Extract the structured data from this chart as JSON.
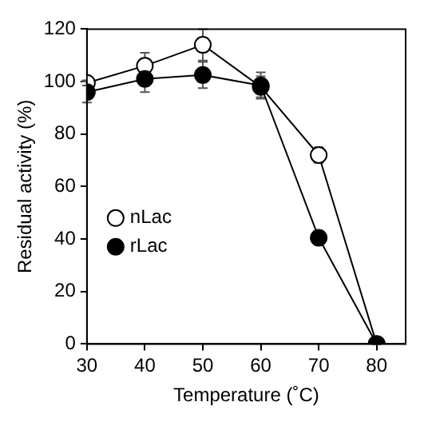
{
  "chart_data": {
    "type": "line",
    "xlabel": "Temperature (˚C)",
    "ylabel": "Residual activity (%)",
    "x": [
      30,
      40,
      50,
      60,
      70,
      80
    ],
    "series": [
      {
        "name": "nLac",
        "color": "#ffffff",
        "values": [
          99.5,
          106,
          114,
          98,
          72,
          0
        ],
        "errors": [
          1,
          5,
          6,
          4,
          3,
          0
        ]
      },
      {
        "name": "rLac",
        "color": "#000000",
        "values": [
          96,
          101,
          102.5,
          98.5,
          40.5,
          0
        ],
        "errors": [
          4,
          5,
          5,
          5,
          1,
          0
        ]
      }
    ],
    "xlim": [
      30,
      85
    ],
    "xticks": [
      30,
      40,
      50,
      60,
      70,
      80
    ],
    "ylim": [
      0,
      120
    ],
    "yticks": [
      0,
      20,
      40,
      60,
      80,
      100,
      120
    ],
    "grid": false,
    "legend": "left",
    "marker": "circle",
    "line_style": "solid"
  }
}
